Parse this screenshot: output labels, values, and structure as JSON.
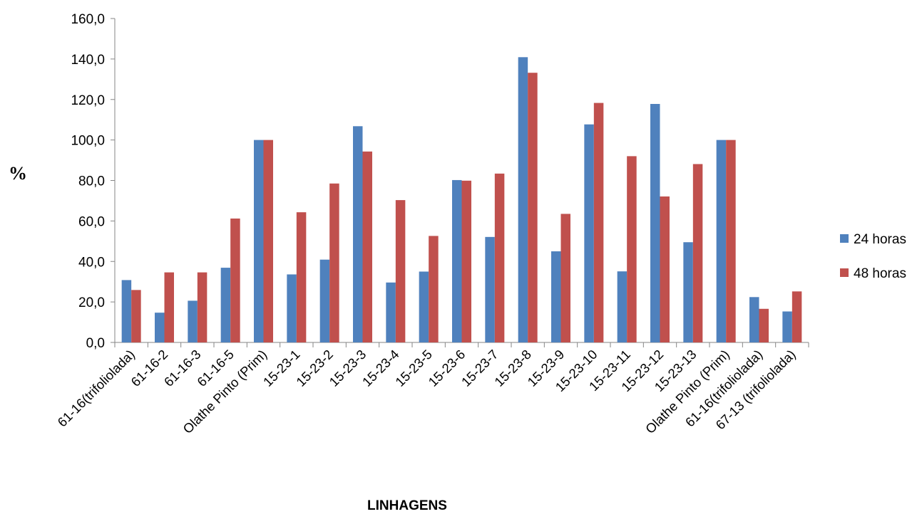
{
  "chart_data": {
    "type": "bar",
    "title": "",
    "xlabel": "LINHAGENS",
    "ylabel": "%",
    "ylim": [
      0,
      160
    ],
    "ytick_step": 20,
    "ytick_labels": [
      "0,0",
      "20,0",
      "40,0",
      "60,0",
      "80,0",
      "100,0",
      "120,0",
      "140,0",
      "160,0"
    ],
    "grid": false,
    "legend_position": "right",
    "categories": [
      "61-16(trifoliolada)",
      "61-16-2",
      "61-16-3",
      "61-16-5",
      "Olathe Pinto (Prim)",
      "15-23-1",
      "15-23-2",
      "15-23-3",
      "15-23-4",
      "15-23-5",
      "15-23-6",
      "15-23-7",
      "15-23-8",
      "15-23-9",
      "15-23-10",
      "15-23-11",
      "15-23-12",
      "15-23-13",
      "Olathe Pinto (Prim)",
      "61-16(trifoliolada)",
      "67-13 (trifoliolada)"
    ],
    "series": [
      {
        "name": "24 horas",
        "color": "#4F81BD",
        "values": [
          30.8,
          14.7,
          20.6,
          36.9,
          100.0,
          33.6,
          40.9,
          106.8,
          29.6,
          35.0,
          80.2,
          52.1,
          140.9,
          45.0,
          107.7,
          35.1,
          117.8,
          49.5,
          100.0,
          22.4,
          15.3
        ]
      },
      {
        "name": "48 horas",
        "color": "#C0504D",
        "values": [
          25.9,
          34.6,
          34.6,
          61.2,
          100.0,
          64.3,
          78.5,
          94.3,
          70.3,
          52.6,
          79.9,
          83.4,
          133.2,
          63.5,
          118.3,
          92.0,
          72.1,
          88.1,
          100.0,
          16.6,
          25.2
        ]
      }
    ]
  }
}
